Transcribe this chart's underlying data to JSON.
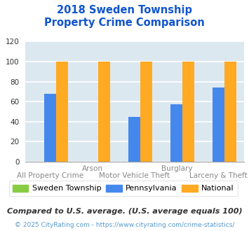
{
  "title": "2018 Sweden Township\nProperty Crime Comparison",
  "categories": [
    "All Property Crime",
    "Arson",
    "Motor Vehicle Theft",
    "Burglary",
    "Larceny & Theft"
  ],
  "x_labels_top": [
    "",
    "Arson",
    "",
    "Burglary",
    ""
  ],
  "x_labels_bottom": [
    "All Property Crime",
    "",
    "Motor Vehicle Theft",
    "",
    "Larceny & Theft"
  ],
  "sweden_values": [
    0,
    0,
    0,
    0,
    0
  ],
  "pa_values": [
    68,
    0,
    45,
    57,
    74
  ],
  "national_values": [
    100,
    100,
    100,
    100,
    100
  ],
  "sweden_color": "#88cc44",
  "pa_color": "#4488ee",
  "national_color": "#ffaa22",
  "ylim": [
    0,
    120
  ],
  "yticks": [
    0,
    20,
    40,
    60,
    80,
    100,
    120
  ],
  "background_color": "#dce8f0",
  "grid_color": "#ffffff",
  "title_color": "#1155cc",
  "footer_text": "Compared to U.S. average. (U.S. average equals 100)",
  "copyright_text": "© 2025 CityRating.com - https://www.cityrating.com/crime-statistics/",
  "legend_labels": [
    "Sweden Township",
    "Pennsylvania",
    "National"
  ]
}
